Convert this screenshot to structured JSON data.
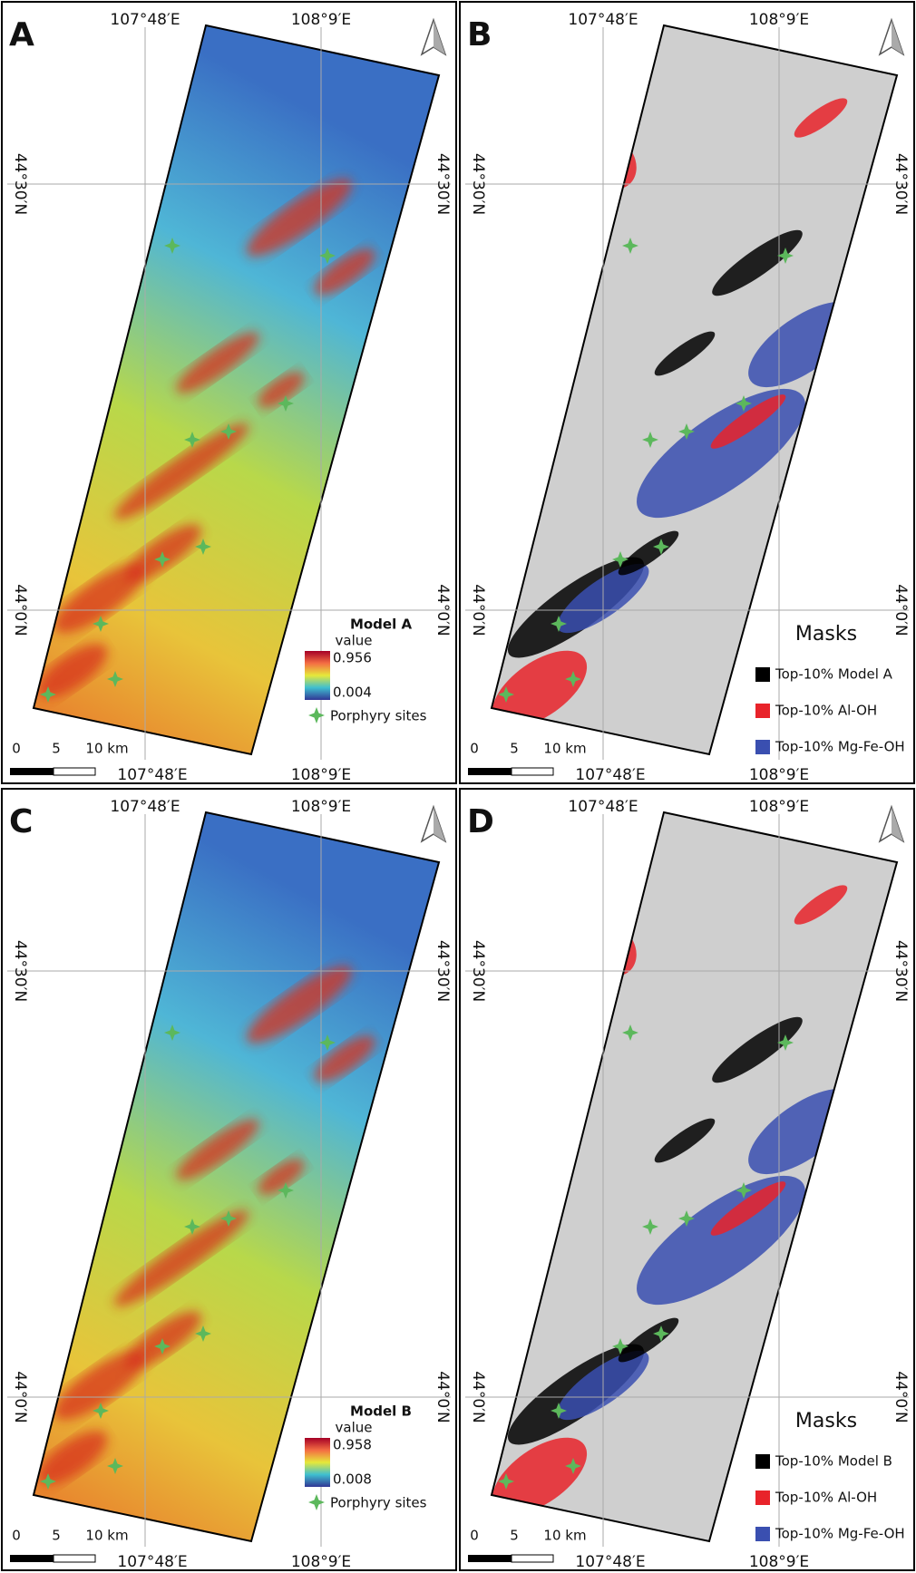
{
  "panels": [
    {
      "label": "A",
      "lon_labels": [
        "107°48′E",
        "108°9′E"
      ],
      "lat_labels": [
        "44°30′N",
        "44°0′N"
      ],
      "scale_labels": [
        "0",
        "5",
        "10 km"
      ],
      "legend": {
        "title": "Model A",
        "subtitle": "value",
        "max": 0.956,
        "min": 0.004,
        "sites": "Porphyry sites"
      }
    },
    {
      "label": "B",
      "lon_labels": [
        "107°48′E",
        "108°9′E"
      ],
      "lat_labels": [
        "44°30′N",
        "44°0′N"
      ],
      "scale_labels": [
        "0",
        "5",
        "10 km"
      ],
      "legend": {
        "title": "Masks",
        "items": [
          {
            "name": "Top-10% Model A",
            "color": "#000000"
          },
          {
            "name": "Top-10% Al-OH",
            "color": "#e8232a"
          },
          {
            "name": "Top-10% Mg-Fe-OH",
            "color": "#3a4fb0"
          }
        ]
      }
    },
    {
      "label": "C",
      "lon_labels": [
        "107°48′E",
        "108°9′E"
      ],
      "lat_labels": [
        "44°30′N",
        "44°0′N"
      ],
      "scale_labels": [
        "0",
        "5",
        "10 km"
      ],
      "legend": {
        "title": "Model B",
        "subtitle": "value",
        "max": 0.958,
        "min": 0.008,
        "sites": "Porphyry sites"
      }
    },
    {
      "label": "D",
      "lon_labels": [
        "107°48′E",
        "108°9′E"
      ],
      "lat_labels": [
        "44°30′N",
        "44°0′N"
      ],
      "scale_labels": [
        "0",
        "5",
        "10 km"
      ],
      "legend": {
        "title": "Masks",
        "items": [
          {
            "name": "Top-10% Model B",
            "color": "#000000"
          },
          {
            "name": "Top-10% Al-OH",
            "color": "#e8232a"
          },
          {
            "name": "Top-10% Mg-Fe-OH",
            "color": "#3a4fb0"
          }
        ]
      }
    }
  ]
}
